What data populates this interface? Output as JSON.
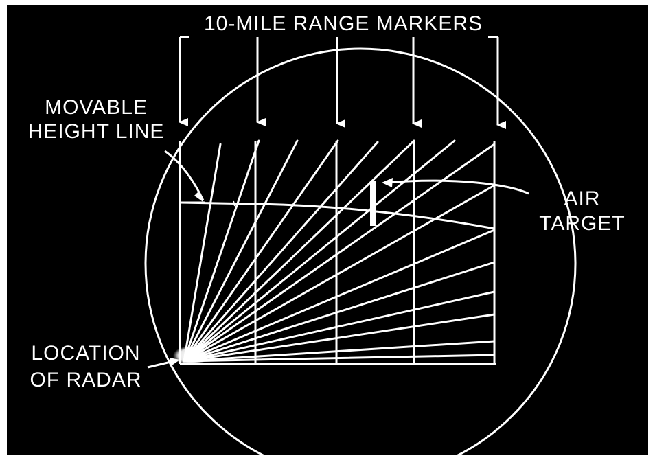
{
  "labels": {
    "range_markers": "10-MILE RANGE MARKERS",
    "movable_height_line": [
      "MOVABLE",
      "HEIGHT LINE"
    ],
    "air_target": [
      "AIR",
      "TARGET"
    ],
    "location_of_radar": [
      "LOCATION",
      "OF RADAR"
    ]
  },
  "colors": {
    "background": "#000000",
    "ink": "#ffffff",
    "page": "#ffffff"
  }
}
